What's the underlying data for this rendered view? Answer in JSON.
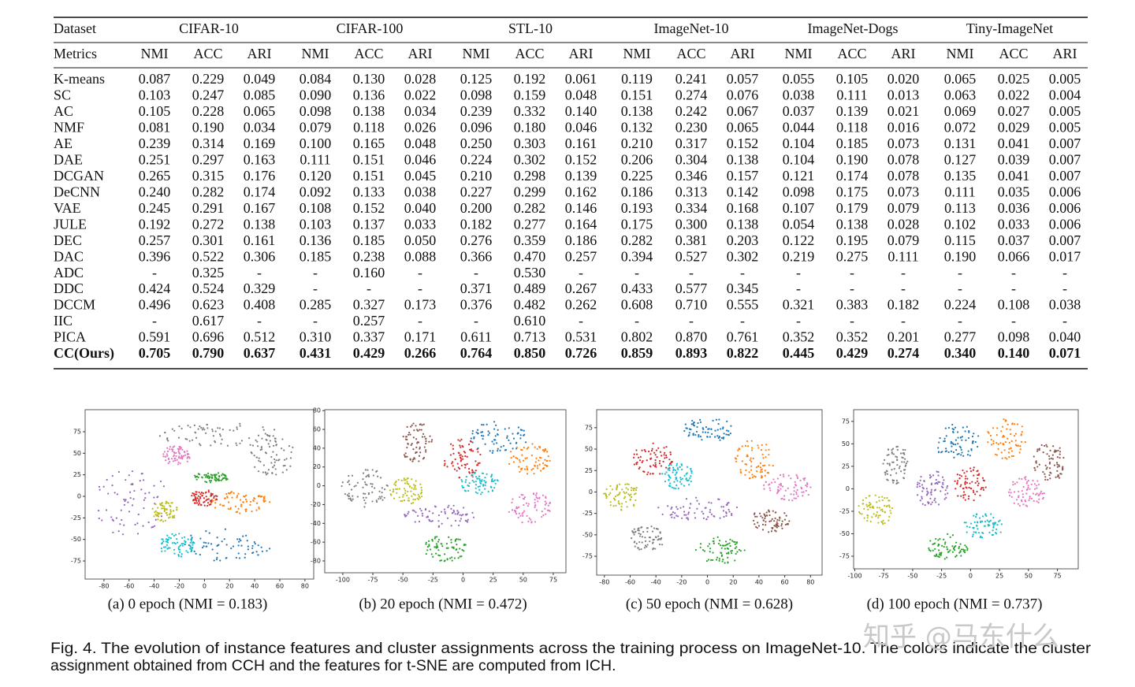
{
  "table": {
    "header": {
      "dataset_label": "Dataset",
      "groups": [
        "CIFAR-10",
        "CIFAR-100",
        "STL-10",
        "ImageNet-10",
        "ImageNet-Dogs",
        "Tiny-ImageNet"
      ],
      "metrics_label": "Metrics",
      "metrics": [
        "NMI",
        "ACC",
        "ARI",
        "NMI",
        "ACC",
        "ARI",
        "NMI",
        "ACC",
        "ARI",
        "NMI",
        "ACC",
        "ARI",
        "NMI",
        "ACC",
        "ARI",
        "NMI",
        "ACC",
        "ARI"
      ]
    },
    "rows": [
      [
        "K-means",
        "0.087",
        "0.229",
        "0.049",
        "0.084",
        "0.130",
        "0.028",
        "0.125",
        "0.192",
        "0.061",
        "0.119",
        "0.241",
        "0.057",
        "0.055",
        "0.105",
        "0.020",
        "0.065",
        "0.025",
        "0.005"
      ],
      [
        "SC",
        "0.103",
        "0.247",
        "0.085",
        "0.090",
        "0.136",
        "0.022",
        "0.098",
        "0.159",
        "0.048",
        "0.151",
        "0.274",
        "0.076",
        "0.038",
        "0.111",
        "0.013",
        "0.063",
        "0.022",
        "0.004"
      ],
      [
        "AC",
        "0.105",
        "0.228",
        "0.065",
        "0.098",
        "0.138",
        "0.034",
        "0.239",
        "0.332",
        "0.140",
        "0.138",
        "0.242",
        "0.067",
        "0.037",
        "0.139",
        "0.021",
        "0.069",
        "0.027",
        "0.005"
      ],
      [
        "NMF",
        "0.081",
        "0.190",
        "0.034",
        "0.079",
        "0.118",
        "0.026",
        "0.096",
        "0.180",
        "0.046",
        "0.132",
        "0.230",
        "0.065",
        "0.044",
        "0.118",
        "0.016",
        "0.072",
        "0.029",
        "0.005"
      ],
      [
        "AE",
        "0.239",
        "0.314",
        "0.169",
        "0.100",
        "0.165",
        "0.048",
        "0.250",
        "0.303",
        "0.161",
        "0.210",
        "0.317",
        "0.152",
        "0.104",
        "0.185",
        "0.073",
        "0.131",
        "0.041",
        "0.007"
      ],
      [
        "DAE",
        "0.251",
        "0.297",
        "0.163",
        "0.111",
        "0.151",
        "0.046",
        "0.224",
        "0.302",
        "0.152",
        "0.206",
        "0.304",
        "0.138",
        "0.104",
        "0.190",
        "0.078",
        "0.127",
        "0.039",
        "0.007"
      ],
      [
        "DCGAN",
        "0.265",
        "0.315",
        "0.176",
        "0.120",
        "0.151",
        "0.045",
        "0.210",
        "0.298",
        "0.139",
        "0.225",
        "0.346",
        "0.157",
        "0.121",
        "0.174",
        "0.078",
        "0.135",
        "0.041",
        "0.007"
      ],
      [
        "DeCNN",
        "0.240",
        "0.282",
        "0.174",
        "0.092",
        "0.133",
        "0.038",
        "0.227",
        "0.299",
        "0.162",
        "0.186",
        "0.313",
        "0.142",
        "0.098",
        "0.175",
        "0.073",
        "0.111",
        "0.035",
        "0.006"
      ],
      [
        "VAE",
        "0.245",
        "0.291",
        "0.167",
        "0.108",
        "0.152",
        "0.040",
        "0.200",
        "0.282",
        "0.146",
        "0.193",
        "0.334",
        "0.168",
        "0.107",
        "0.179",
        "0.079",
        "0.113",
        "0.036",
        "0.006"
      ],
      [
        "JULE",
        "0.192",
        "0.272",
        "0.138",
        "0.103",
        "0.137",
        "0.033",
        "0.182",
        "0.277",
        "0.164",
        "0.175",
        "0.300",
        "0.138",
        "0.054",
        "0.138",
        "0.028",
        "0.102",
        "0.033",
        "0.006"
      ],
      [
        "DEC",
        "0.257",
        "0.301",
        "0.161",
        "0.136",
        "0.185",
        "0.050",
        "0.276",
        "0.359",
        "0.186",
        "0.282",
        "0.381",
        "0.203",
        "0.122",
        "0.195",
        "0.079",
        "0.115",
        "0.037",
        "0.007"
      ],
      [
        "DAC",
        "0.396",
        "0.522",
        "0.306",
        "0.185",
        "0.238",
        "0.088",
        "0.366",
        "0.470",
        "0.257",
        "0.394",
        "0.527",
        "0.302",
        "0.219",
        "0.275",
        "0.111",
        "0.190",
        "0.066",
        "0.017"
      ],
      [
        "ADC",
        "-",
        "0.325",
        "-",
        "-",
        "0.160",
        "-",
        "-",
        "0.530",
        "-",
        "-",
        "-",
        "-",
        "-",
        "-",
        "-",
        "-",
        "-",
        "-"
      ],
      [
        "DDC",
        "0.424",
        "0.524",
        "0.329",
        "-",
        "-",
        "-",
        "0.371",
        "0.489",
        "0.267",
        "0.433",
        "0.577",
        "0.345",
        "-",
        "-",
        "-",
        "-",
        "-",
        "-"
      ],
      [
        "DCCM",
        "0.496",
        "0.623",
        "0.408",
        "0.285",
        "0.327",
        "0.173",
        "0.376",
        "0.482",
        "0.262",
        "0.608",
        "0.710",
        "0.555",
        "0.321",
        "0.383",
        "0.182",
        "0.224",
        "0.108",
        "0.038"
      ],
      [
        "IIC",
        "-",
        "0.617",
        "-",
        "-",
        "0.257",
        "-",
        "-",
        "0.610",
        "-",
        "-",
        "-",
        "-",
        "-",
        "-",
        "-",
        "-",
        "-",
        "-"
      ],
      [
        "PICA",
        "0.591",
        "0.696",
        "0.512",
        "0.310",
        "0.337",
        "0.171",
        "0.611",
        "0.713",
        "0.531",
        "0.802",
        "0.870",
        "0.761",
        "0.352",
        "0.352",
        "0.201",
        "0.277",
        "0.098",
        "0.040"
      ],
      [
        "CC(Ours)",
        "0.705",
        "0.790",
        "0.637",
        "0.431",
        "0.429",
        "0.266",
        "0.764",
        "0.850",
        "0.726",
        "0.859",
        "0.893",
        "0.822",
        "0.445",
        "0.429",
        "0.274",
        "0.340",
        "0.140",
        "0.071"
      ]
    ]
  },
  "figures": [
    {
      "caption": "(a) 0 epoch (NMI = 0.183)",
      "xlim": [
        -95,
        87
      ],
      "ylim": [
        -96,
        100.6
      ],
      "xticks": [
        -80,
        -60,
        -40,
        -20,
        0,
        20,
        40,
        60,
        80
      ],
      "yticks": [
        -75,
        -50,
        -25,
        0,
        25,
        50,
        75
      ]
    },
    {
      "caption": "(b) 20 epoch (NMI = 0.472)",
      "xlim": [
        -115,
        85.5
      ],
      "ylim": [
        -92.6,
        81
      ],
      "xticks": [
        -100,
        -75,
        -50,
        -25,
        0,
        25,
        50,
        75
      ],
      "yticks": [
        -80,
        -60,
        -40,
        -20,
        0,
        20,
        40,
        60,
        80
      ]
    },
    {
      "caption": "(c) 50 epoch (NMI = 0.628)",
      "xlim": [
        -86,
        89
      ],
      "ylim": [
        -97,
        96
      ],
      "xticks": [
        -80,
        -60,
        -40,
        -20,
        0,
        20,
        40,
        60,
        80
      ],
      "yticks": [
        -75,
        -50,
        -25,
        0,
        25,
        50,
        75
      ]
    },
    {
      "caption": "(d) 100 epoch (NMI = 0.737)",
      "xlim": [
        -101,
        93
      ],
      "ylim": [
        -89,
        88
      ],
      "xticks": [
        -100,
        -75,
        -50,
        -25,
        0,
        25,
        50,
        75
      ],
      "yticks": [
        -75,
        -50,
        -25,
        0,
        25,
        50,
        75
      ]
    }
  ],
  "figure_caption": {
    "lines": [
      "Fig. 4. The evolution of instance features and cluster assignments across the training process on ImageNet-10. The colors indicate the cluster",
      "assignment obtained from CCH and the features for t-SNE are computed from ICH."
    ]
  },
  "watermark": "知乎 @马东什么"
}
